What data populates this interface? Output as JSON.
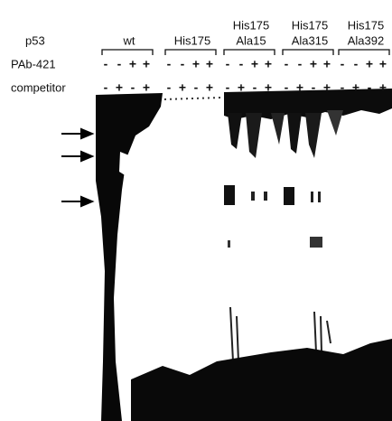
{
  "row_labels": [
    "p53",
    "PAb-421",
    "competitor"
  ],
  "groups": [
    {
      "label": [
        "wt"
      ],
      "pab": [
        "-",
        "-",
        "+",
        "+"
      ],
      "competitor": [
        "-",
        "+",
        "-",
        "+"
      ]
    },
    {
      "label": [
        "His175"
      ],
      "pab": [
        "-",
        "-",
        "+",
        "+"
      ],
      "competitor": [
        "-",
        "+",
        "-",
        "+"
      ]
    },
    {
      "label": [
        "His175",
        "Ala15"
      ],
      "pab": [
        "-",
        "-",
        "+",
        "+"
      ],
      "competitor": [
        "-",
        "+",
        "-",
        "+"
      ]
    },
    {
      "label": [
        "His175",
        "Ala315"
      ],
      "pab": [
        "-",
        "-",
        "+",
        "+"
      ],
      "competitor": [
        "-",
        "+",
        "-",
        "+"
      ]
    },
    {
      "label": [
        "His175",
        "Ala392"
      ],
      "pab": [
        "-",
        "-",
        "+",
        "+"
      ],
      "competitor": [
        "-",
        "+",
        "-",
        "+"
      ]
    }
  ]
}
